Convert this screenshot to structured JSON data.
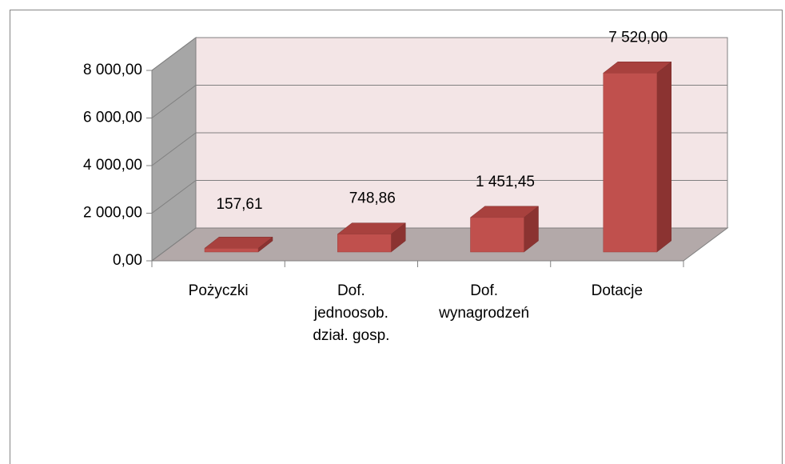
{
  "chart_data": {
    "type": "bar3d",
    "categories": [
      "Pożyczki",
      "Dof.\njednoosob.\ndział. gosp.",
      "Dof.\nwynagrodzeń",
      "Dotacje"
    ],
    "values": [
      157.61,
      748.86,
      1451.45,
      7520
    ],
    "value_labels": [
      "157,61",
      "748,86",
      "1 451,45",
      "7 520,00"
    ],
    "color": "#c0504d",
    "ylim": [
      0,
      8000
    ],
    "yticks": [
      {
        "value": 0,
        "label": "0,00"
      },
      {
        "value": 2000,
        "label": "2 000,00"
      },
      {
        "value": 4000,
        "label": "4 000,00"
      },
      {
        "value": 6000,
        "label": "6 000,00"
      },
      {
        "value": 8000,
        "label": "8 000,00"
      }
    ],
    "grid": true
  }
}
